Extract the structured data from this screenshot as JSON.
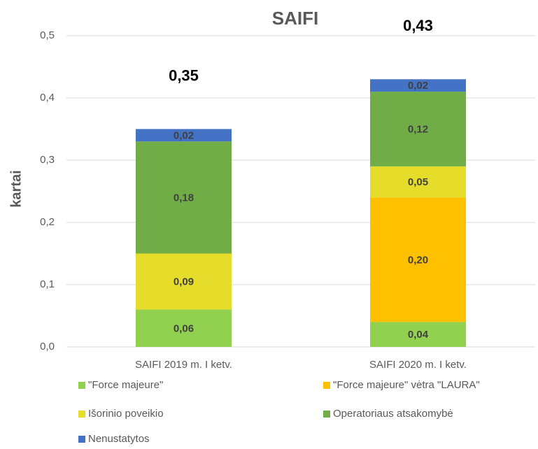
{
  "chart_data": {
    "type": "stacked_bar",
    "title": "SAIFI",
    "y_label": "kartai",
    "categories": [
      "SAIFI 2019 m. I ketv.",
      "SAIFI 2020 m. I ketv."
    ],
    "series": [
      {
        "name": "\"Force majeure\"",
        "color": "#92d050",
        "values": [
          0.06,
          0.04
        ],
        "value_labels": [
          "0,06",
          "0,04"
        ]
      },
      {
        "name": "\"Force majeure\" vėtra \"LAURA\"",
        "color": "#ffc000",
        "values": [
          null,
          0.2
        ],
        "value_labels": [
          null,
          "0,20"
        ]
      },
      {
        "name": "Išorinio poveikio",
        "color": "#e6dc2a",
        "values": [
          0.09,
          0.05
        ],
        "value_labels": [
          "0,09",
          "0,05"
        ]
      },
      {
        "name": "Operatoriaus atsakomybė",
        "color": "#70ad47",
        "values": [
          0.18,
          0.12
        ],
        "value_labels": [
          "0,18",
          "0,12"
        ]
      },
      {
        "name": "Nenustatytos",
        "color": "#4472c4",
        "values": [
          0.02,
          0.02
        ],
        "value_labels": [
          "0,02",
          "0,02"
        ]
      }
    ],
    "totals": [
      0.35,
      0.43
    ],
    "total_labels": [
      "0,35",
      "0,43"
    ],
    "ylim": [
      0,
      0.5
    ],
    "yticks": [
      {
        "value": 0,
        "label": "0,0"
      },
      {
        "value": 0.1,
        "label": "0,1"
      },
      {
        "value": 0.2,
        "label": "0,2"
      },
      {
        "value": 0.3,
        "label": "0,3"
      },
      {
        "value": 0.4,
        "label": "0,4"
      },
      {
        "value": 0.5,
        "label": "0,5"
      }
    ],
    "grid": true
  }
}
